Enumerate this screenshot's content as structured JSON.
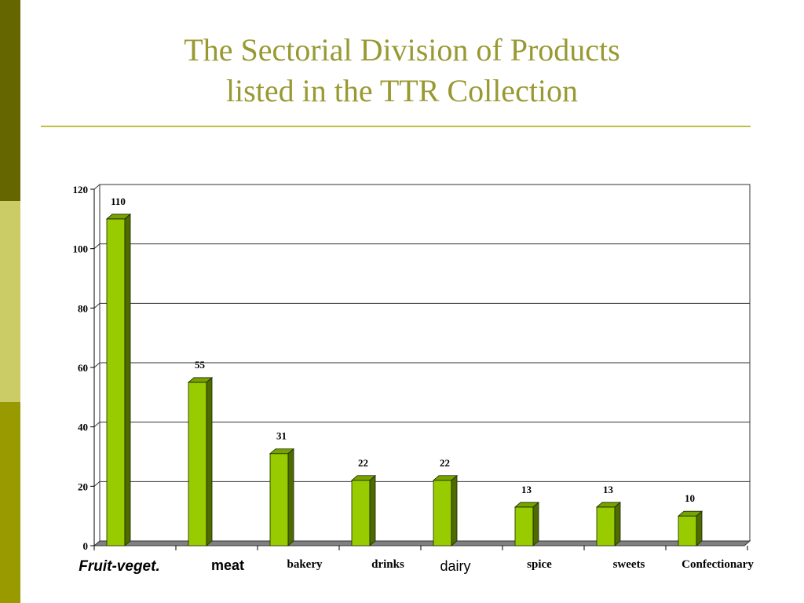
{
  "slide": {
    "title_line1": "The Sectorial Division of Products",
    "title_line2": "listed in the TTR Collection",
    "colors": {
      "side_bar_dark": "#666600",
      "side_bar_light": "#cccc66",
      "side_bar_mid": "#999900",
      "title": "#999933",
      "rule": "#bfbf40"
    }
  },
  "chart_data": {
    "type": "bar",
    "title": "",
    "xlabel": "",
    "ylabel": "",
    "categories": [
      "Fruit-veget.",
      "meat",
      "bakery",
      "drinks",
      "dairy",
      "spice",
      "sweets",
      "Confectionary"
    ],
    "values": [
      110,
      55,
      31,
      22,
      22,
      13,
      13,
      10
    ],
    "ylim": [
      0,
      120
    ],
    "yticks": [
      0,
      20,
      40,
      60,
      80,
      100,
      120
    ],
    "grid": true,
    "legend": "none",
    "style": "3d",
    "colors": {
      "bar_front": "#99cc00",
      "bar_top": "#77a300",
      "bar_side": "#4d6b00",
      "floor": "#808080"
    }
  }
}
